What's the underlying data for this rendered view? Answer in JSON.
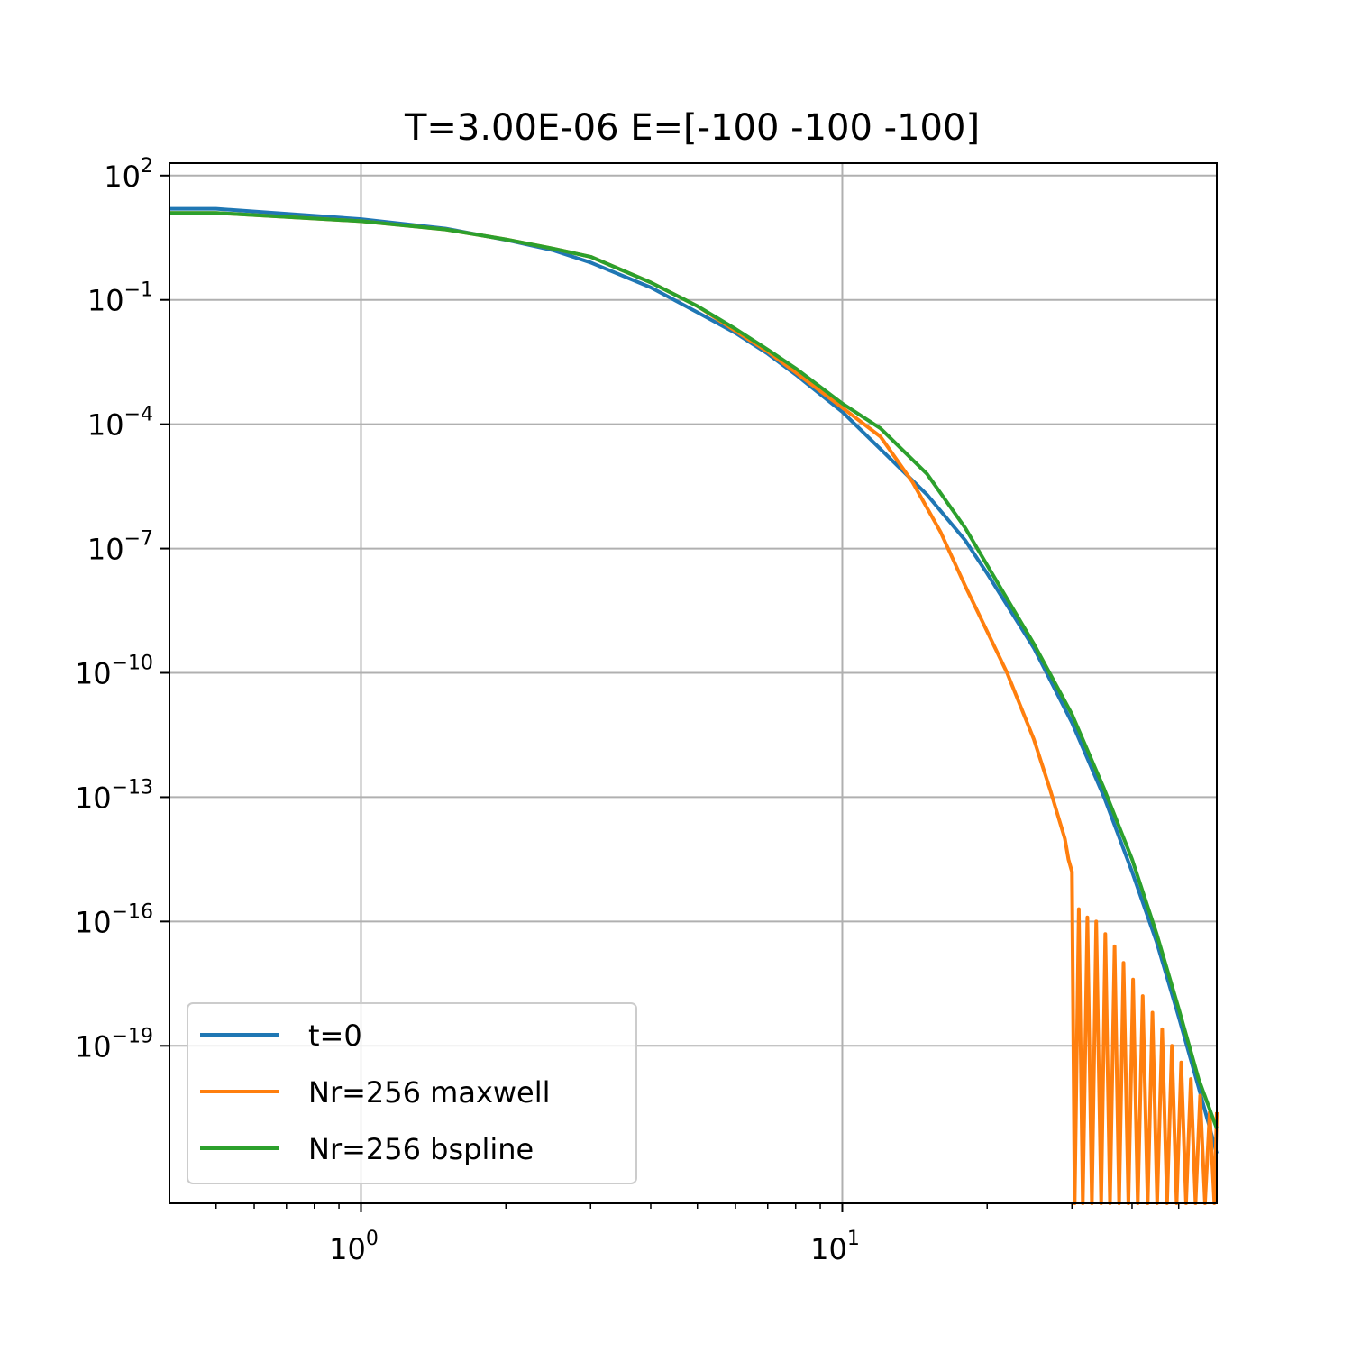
{
  "chart_data": {
    "type": "line",
    "title": "T=3.00E-06 E=[-100 -100 -100]",
    "xlabel": "",
    "ylabel": "",
    "x_scale": "log",
    "y_scale": "log",
    "xlim": [
      0.4,
      60
    ],
    "ylim_exponents": [
      -22.8,
      2.3
    ],
    "grid": true,
    "legend_position": "lower-left",
    "x_ticks": [
      {
        "base": "10",
        "exp": "0",
        "value": 1
      },
      {
        "base": "10",
        "exp": "1",
        "value": 10
      }
    ],
    "y_ticks": [
      {
        "base": "10",
        "exp": "2",
        "value_exp": 2
      },
      {
        "base": "10",
        "exp": "−1",
        "value_exp": -1
      },
      {
        "base": "10",
        "exp": "−4",
        "value_exp": -4
      },
      {
        "base": "10",
        "exp": "−7",
        "value_exp": -7
      },
      {
        "base": "10",
        "exp": "−10",
        "value_exp": -10
      },
      {
        "base": "10",
        "exp": "−13",
        "value_exp": -13
      },
      {
        "base": "10",
        "exp": "−16",
        "value_exp": -16
      },
      {
        "base": "10",
        "exp": "−19",
        "value_exp": -19
      }
    ],
    "series": [
      {
        "name": "t=0",
        "color": "#1f77b4",
        "x": [
          0.4,
          0.5,
          1.0,
          1.5,
          2.0,
          2.5,
          3.0,
          4.0,
          5.0,
          6.0,
          7.0,
          8.0,
          10.0,
          12.0,
          15.0,
          18.0,
          20.0,
          25.0,
          30.0,
          35.0,
          40.0,
          45.0,
          50.0,
          55.0,
          60.0
        ],
        "y_log10": [
          1.2,
          1.2,
          0.95,
          0.72,
          0.45,
          0.2,
          -0.1,
          -0.7,
          -1.3,
          -1.8,
          -2.3,
          -2.8,
          -3.7,
          -4.6,
          -5.7,
          -6.8,
          -7.6,
          -9.4,
          -11.2,
          -13.0,
          -14.8,
          -16.5,
          -18.3,
          -20.0,
          -21.6
        ]
      },
      {
        "name": "Nr=256 maxwell",
        "color": "#ff7f0e",
        "x": [
          0.4,
          0.5,
          1.0,
          1.5,
          2.0,
          2.5,
          3.0,
          4.0,
          5.0,
          6.0,
          7.0,
          8.0,
          10.0,
          12.0,
          14.0,
          16.0,
          18.0,
          20.0,
          22.0,
          25.0,
          27.0,
          29.0,
          29.5,
          30.0
        ],
        "y_log10": [
          1.1,
          1.1,
          0.9,
          0.7,
          0.46,
          0.24,
          0.04,
          -0.58,
          -1.15,
          -1.75,
          -2.25,
          -2.75,
          -3.6,
          -4.3,
          -5.4,
          -6.6,
          -7.9,
          -9.0,
          -10.0,
          -11.6,
          -12.8,
          -14.0,
          -14.5,
          -14.8
        ]
      },
      {
        "name": "Nr=256 bspline",
        "color": "#2ca02c",
        "x": [
          0.4,
          0.5,
          1.0,
          1.5,
          2.0,
          2.5,
          3.0,
          4.0,
          5.0,
          6.0,
          7.0,
          8.0,
          10.0,
          12.0,
          15.0,
          18.0,
          20.0,
          25.0,
          30.0,
          35.0,
          40.0,
          45.0,
          50.0,
          55.0,
          60.0
        ],
        "y_log10": [
          1.1,
          1.1,
          0.9,
          0.7,
          0.46,
          0.24,
          0.04,
          -0.58,
          -1.15,
          -1.7,
          -2.2,
          -2.65,
          -3.5,
          -4.1,
          -5.2,
          -6.5,
          -7.4,
          -9.3,
          -11.0,
          -12.8,
          -14.5,
          -16.3,
          -18.1,
          -19.8,
          -21.0
        ]
      }
    ],
    "maxwell_oscillations": {
      "x": [
        30.0,
        30.4,
        31.0,
        31.6,
        32.3,
        33.0,
        33.7,
        34.5,
        35.2,
        36.0,
        36.8,
        37.6,
        38.4,
        39.3,
        40.2,
        41.1,
        42.1,
        43.1,
        44.1,
        45.1,
        46.2,
        47.3,
        48.4,
        49.5,
        50.6,
        51.8,
        53.0,
        54.2,
        55.4,
        56.7,
        58.0,
        59.3,
        60.0
      ],
      "y_log10": [
        -14.8,
        -22.8,
        -15.7,
        -22.8,
        -15.9,
        -22.8,
        -16.0,
        -22.8,
        -16.3,
        -22.8,
        -16.6,
        -22.8,
        -17.0,
        -22.8,
        -17.4,
        -22.8,
        -17.8,
        -22.8,
        -18.2,
        -22.8,
        -18.6,
        -22.8,
        -19.0,
        -22.8,
        -19.4,
        -22.8,
        -19.8,
        -22.8,
        -20.2,
        -22.8,
        -20.6,
        -22.8,
        -20.6
      ]
    }
  }
}
